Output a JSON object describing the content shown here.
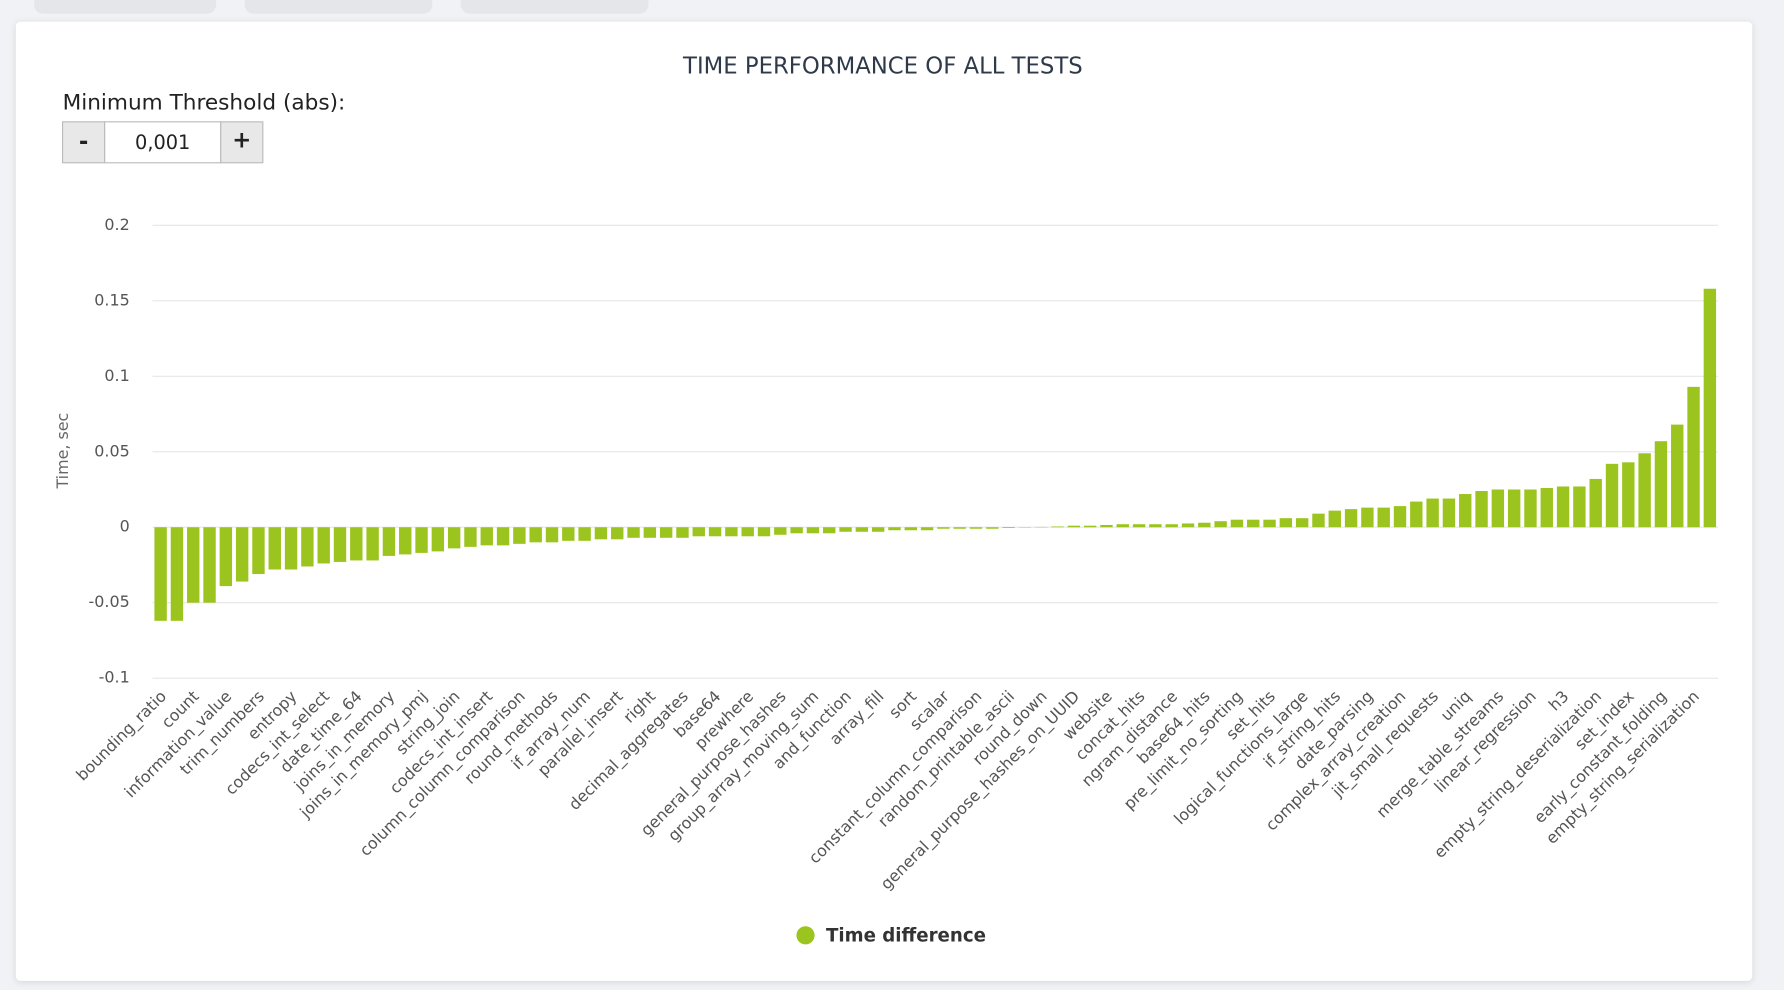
{
  "controls": {
    "label": "Minimum Threshold (abs):",
    "minus": "-",
    "value": "0,001",
    "plus": "+"
  },
  "chart_data": {
    "type": "bar",
    "title": "TIME PERFORMANCE OF ALL TESTS",
    "y_label": "Time, sec",
    "categories": [
      "bounding_ratio",
      null,
      "count",
      null,
      "information_value",
      null,
      "trim_numbers",
      null,
      "entropy",
      null,
      "codecs_int_select",
      null,
      "date_time_64",
      null,
      "joins_in_memory",
      null,
      "joins_in_memory_pmj",
      null,
      "string_join",
      null,
      "codecs_int_insert",
      null,
      "column_column_comparison",
      null,
      "round_methods",
      null,
      "if_array_num",
      null,
      "parallel_insert",
      null,
      "right",
      null,
      "decimal_aggregates",
      null,
      "base64",
      null,
      "prewhere",
      null,
      "general_purpose_hashes",
      null,
      "group_array_moving_sum",
      null,
      "and_function",
      null,
      "array_fill",
      null,
      "sort",
      null,
      "scalar",
      null,
      "constant_column_comparison",
      null,
      "random_printable_ascii",
      null,
      "round_down",
      null,
      "general_purpose_hashes_on_UUID",
      null,
      "website",
      null,
      "concat_hits",
      null,
      "ngram_distance",
      null,
      "base64_hits",
      null,
      "pre_limit_no_sorting",
      null,
      "set_hits",
      null,
      "logical_functions_large",
      null,
      "if_string_hits",
      null,
      "date_parsing",
      null,
      "complex_array_creation",
      null,
      "jit_small_requests",
      null,
      "uniq",
      null,
      "merge_table_streams",
      null,
      "linear_regression",
      null,
      "h3",
      null,
      "empty_string_deserialization",
      null,
      "set_index",
      null,
      "early_constant_folding",
      null,
      "empty_string_serialization",
      null
    ],
    "series": [
      {
        "name": "Time difference",
        "color": "#9bc51e",
        "values": [
          -0.062,
          -0.062,
          -0.05,
          -0.05,
          -0.039,
          -0.036,
          -0.031,
          -0.028,
          -0.028,
          -0.026,
          -0.024,
          -0.023,
          -0.022,
          -0.022,
          -0.019,
          -0.018,
          -0.017,
          -0.016,
          -0.014,
          -0.013,
          -0.012,
          -0.012,
          -0.011,
          -0.01,
          -0.01,
          -0.009,
          -0.009,
          -0.008,
          -0.008,
          -0.007,
          -0.007,
          -0.007,
          -0.007,
          -0.006,
          -0.006,
          -0.006,
          -0.006,
          -0.006,
          -0.005,
          -0.004,
          -0.004,
          -0.004,
          -0.003,
          -0.003,
          -0.003,
          -0.002,
          -0.002,
          -0.002,
          -0.001,
          -0.001,
          -0.001,
          -0.001,
          -0.0005,
          -0.0002,
          0.0002,
          0.0005,
          0.001,
          0.001,
          0.0015,
          0.002,
          0.002,
          0.002,
          0.002,
          0.0025,
          0.003,
          0.004,
          0.005,
          0.005,
          0.005,
          0.006,
          0.006,
          0.009,
          0.011,
          0.012,
          0.013,
          0.013,
          0.014,
          0.017,
          0.019,
          0.019,
          0.022,
          0.024,
          0.025,
          0.025,
          0.025,
          0.026,
          0.027,
          0.027,
          0.032,
          0.042,
          0.043,
          0.049,
          0.057,
          0.068,
          0.093,
          0.158
        ]
      }
    ],
    "ylim": [
      -0.1,
      0.2
    ],
    "yticks": [
      -0.1,
      -0.05,
      0,
      0.05,
      0.1,
      0.15,
      0.2
    ],
    "grid": true,
    "legend": "bottom"
  }
}
